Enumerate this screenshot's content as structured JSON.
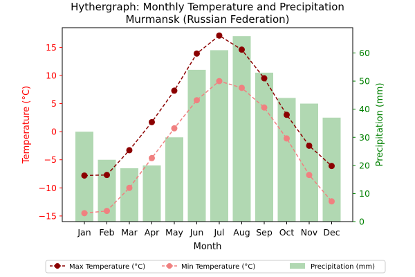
{
  "chart_data": {
    "type": "bar+line",
    "title": "Hythergraph: Monthly Temperature and Precipitation",
    "subtitle": "Murmansk (Russian Federation)",
    "xlabel": "Month",
    "ylabel_left": "Temperature (°C)",
    "ylabel_right": "Precipitation (mm)",
    "categories": [
      "Jan",
      "Feb",
      "Mar",
      "Apr",
      "May",
      "Jun",
      "Jul",
      "Aug",
      "Sep",
      "Oct",
      "Nov",
      "Dec"
    ],
    "ylim_left": [
      -16,
      18.5
    ],
    "ylim_right": [
      0,
      69
    ],
    "yticks_left": [
      -15,
      -10,
      -5,
      0,
      5,
      10,
      15
    ],
    "yticks_right": [
      0,
      10,
      20,
      30,
      40,
      50,
      60
    ],
    "series": [
      {
        "name": "Max Temperature (°C)",
        "axis": "left",
        "kind": "line",
        "color": "#8b0000",
        "values": [
          -7.8,
          -7.7,
          -3.3,
          1.7,
          7.3,
          13.9,
          17.1,
          14.6,
          9.5,
          3.0,
          -2.5,
          -6.1
        ]
      },
      {
        "name": "Min Temperature (°C)",
        "axis": "left",
        "kind": "line",
        "color": "#f08080",
        "values": [
          -14.5,
          -14.1,
          -10.0,
          -4.7,
          0.6,
          5.6,
          9.0,
          7.8,
          4.3,
          -1.2,
          -7.7,
          -12.4
        ]
      },
      {
        "name": "Precipitation (mm)",
        "axis": "right",
        "kind": "bar",
        "color": "#b1d8b2",
        "values": [
          32,
          22,
          19,
          20,
          30,
          54,
          61,
          66,
          53,
          44,
          42,
          37
        ]
      }
    ],
    "legend_position": "bottom-center",
    "grid": false
  }
}
